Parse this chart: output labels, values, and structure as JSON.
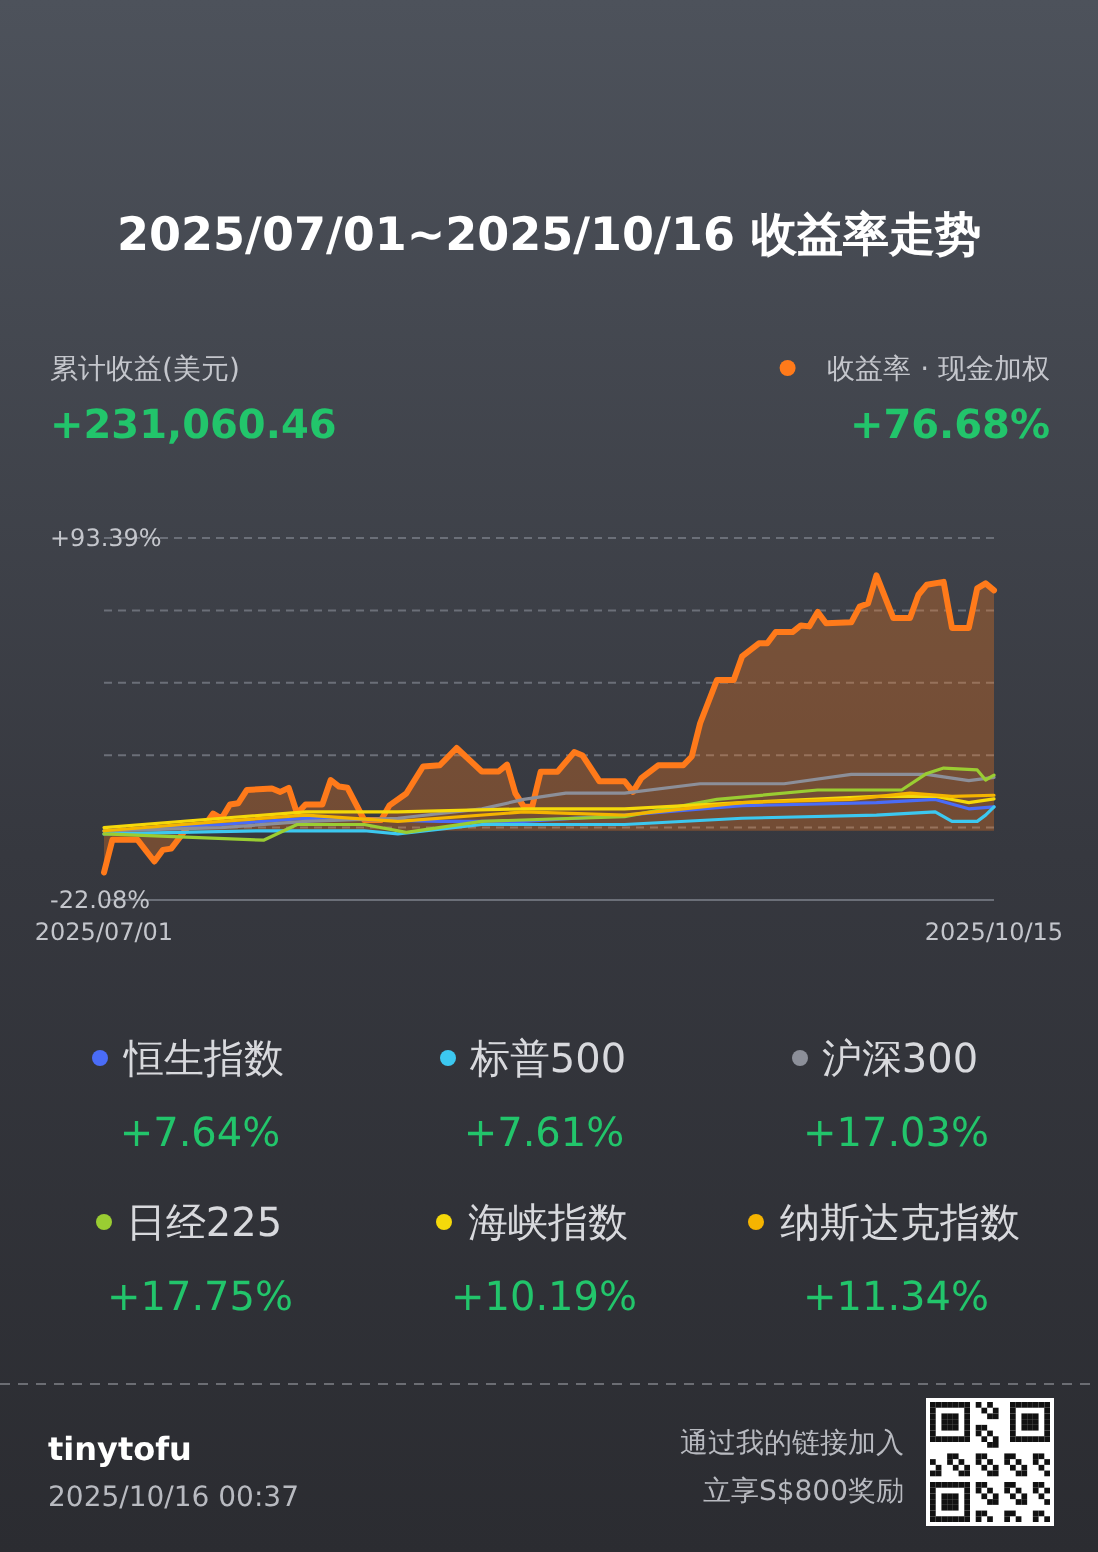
{
  "chart_data": {
    "type": "line",
    "title": "2025/07/01~2025/10/16 收益率走势",
    "annotations": [
      "累计收益(美元)",
      "+231,060.46",
      "tinytofu",
      "2025/10/16 00:37",
      "通过我的链接加入",
      "立享S$800奖励",
      "+76.68%",
      "+7.64%",
      "+7.61%",
      "+17.03%",
      "+17.75%",
      "+10.19%",
      "+11.34%"
    ],
    "xlim": [
      "2025-07-01",
      "2025-10-15"
    ],
    "xticks": [
      {
        "value": "2025-07-01",
        "label": "2025/07/01"
      },
      {
        "value": "2025-10-15",
        "label": "2025/10/15"
      }
    ],
    "ylim": [
      -22.08,
      93.39
    ],
    "yticks": [
      {
        "value": 93.39,
        "label": "+93.39%"
      },
      {
        "value": 70.29,
        "label": null
      },
      {
        "value": 47.2,
        "label": null
      },
      {
        "value": 24.11,
        "label": null
      },
      {
        "value": 1.01,
        "label": null
      },
      {
        "value": -22.08,
        "label": "-22.08%"
      }
    ],
    "grid": "y",
    "legend": "bottom",
    "marker": "none",
    "line_style": "solid",
    "series": [
      {
        "name": "收益率 · 现金加权",
        "type": "area",
        "color": "#ff7a1a",
        "x": [
          "2025-07-01",
          "2025-07-02",
          "2025-07-05",
          "2025-07-07",
          "2025-07-08",
          "2025-07-09",
          "2025-07-11",
          "2025-07-13",
          "2025-07-14",
          "2025-07-15",
          "2025-07-16",
          "2025-07-17",
          "2025-07-18",
          "2025-07-21",
          "2025-07-22",
          "2025-07-23",
          "2025-07-24",
          "2025-07-25",
          "2025-07-27",
          "2025-07-28",
          "2025-07-29",
          "2025-07-30",
          "2025-08-01",
          "2025-08-03",
          "2025-08-04",
          "2025-08-06",
          "2025-08-08",
          "2025-08-10",
          "2025-08-12",
          "2025-08-15",
          "2025-08-17",
          "2025-08-18",
          "2025-08-19",
          "2025-08-20",
          "2025-08-21",
          "2025-08-22",
          "2025-08-24",
          "2025-08-26",
          "2025-08-27",
          "2025-08-29",
          "2025-09-01",
          "2025-09-02",
          "2025-09-03",
          "2025-09-05",
          "2025-09-08",
          "2025-09-09",
          "2025-09-10",
          "2025-09-12",
          "2025-09-14",
          "2025-09-15",
          "2025-09-17",
          "2025-09-18",
          "2025-09-19",
          "2025-09-21",
          "2025-09-22",
          "2025-09-23",
          "2025-09-24",
          "2025-09-25",
          "2025-09-28",
          "2025-09-29",
          "2025-09-30",
          "2025-10-01",
          "2025-10-03",
          "2025-10-05",
          "2025-10-06",
          "2025-10-07",
          "2025-10-09",
          "2025-10-10",
          "2025-10-12",
          "2025-10-13",
          "2025-10-14",
          "2025-10-15"
        ],
        "values": [
          -13.3,
          -2.9,
          -2.9,
          -9.8,
          -6.1,
          -5.7,
          1.3,
          1.7,
          5.5,
          3.9,
          8.4,
          8.8,
          13,
          13.5,
          12.4,
          13.7,
          5.5,
          8.4,
          8.4,
          16.2,
          14.1,
          13.7,
          3.4,
          3.4,
          8.1,
          11.9,
          20.5,
          20.9,
          26.4,
          18.9,
          18.9,
          21.1,
          11.9,
          7.7,
          7.7,
          18.8,
          18.8,
          25.1,
          24,
          15.8,
          15.8,
          12.4,
          16.8,
          20.9,
          20.9,
          23.7,
          34.3,
          48.1,
          48.1,
          55.6,
          59.8,
          59.8,
          63.4,
          63.4,
          65.5,
          65.2,
          69.8,
          66.2,
          66.5,
          71.5,
          72.5,
          81.5,
          67.9,
          67.9,
          75.3,
          78.5,
          79.4,
          64.7,
          64.7,
          77.3,
          78.9,
          76.68
        ]
      },
      {
        "name": "恒生指数",
        "color": "#4a6cf7",
        "x": [
          "2025-07-01",
          "2025-07-15",
          "2025-07-25",
          "2025-08-10",
          "2025-08-20",
          "2025-09-01",
          "2025-09-15",
          "2025-10-01",
          "2025-10-08",
          "2025-10-12",
          "2025-10-15"
        ],
        "values": [
          0,
          2,
          4,
          3,
          3,
          5,
          8,
          9,
          10,
          7,
          7.64
        ]
      },
      {
        "name": "标普500",
        "color": "#3cc8f0",
        "x": [
          "2025-07-01",
          "2025-07-20",
          "2025-08-01",
          "2025-08-05",
          "2025-08-15",
          "2025-09-01",
          "2025-09-15",
          "2025-10-01",
          "2025-10-08",
          "2025-10-10",
          "2025-10-13",
          "2025-10-14",
          "2025-10-15"
        ],
        "values": [
          -1,
          0,
          0,
          -1,
          2,
          2,
          4,
          5,
          6,
          3,
          3,
          5,
          7.61
        ]
      },
      {
        "name": "沪深300",
        "color": "#8c8f99",
        "x": [
          "2025-07-01",
          "2025-07-15",
          "2025-07-25",
          "2025-08-05",
          "2025-08-15",
          "2025-08-20",
          "2025-08-25",
          "2025-09-01",
          "2025-09-10",
          "2025-09-20",
          "2025-09-28",
          "2025-10-07",
          "2025-10-12",
          "2025-10-15"
        ],
        "values": [
          0,
          1,
          3,
          4,
          7,
          10,
          12,
          12,
          15,
          15,
          18,
          18,
          16,
          17.03
        ]
      },
      {
        "name": "日经225",
        "color": "#9acd32",
        "x": [
          "2025-07-01",
          "2025-07-20",
          "2025-07-24",
          "2025-08-01",
          "2025-08-06",
          "2025-08-15",
          "2025-09-01",
          "2025-09-12",
          "2025-09-24",
          "2025-10-04",
          "2025-10-07",
          "2025-10-09",
          "2025-10-13",
          "2025-10-14",
          "2025-10-15"
        ],
        "values": [
          -1,
          -3,
          2,
          2,
          -0.5,
          3,
          4.5,
          10,
          13,
          13,
          18.3,
          20,
          19.4,
          16.2,
          17.75
        ]
      },
      {
        "name": "海峡指数",
        "color": "#f5d90a",
        "x": [
          "2025-07-01",
          "2025-07-15",
          "2025-07-25",
          "2025-08-05",
          "2025-08-20",
          "2025-09-01",
          "2025-09-15",
          "2025-10-01",
          "2025-10-08",
          "2025-10-12",
          "2025-10-15"
        ],
        "values": [
          1,
          4,
          6,
          6,
          7,
          7,
          9,
          11,
          11,
          9,
          10.19
        ]
      },
      {
        "name": "纳斯达克指数",
        "color": "#f5b400",
        "x": [
          "2025-07-01",
          "2025-07-15",
          "2025-07-25",
          "2025-08-05",
          "2025-08-20",
          "2025-09-01",
          "2025-09-15",
          "2025-09-28",
          "2025-10-05",
          "2025-10-10",
          "2025-10-15"
        ],
        "values": [
          0,
          3,
          5,
          3,
          6,
          5,
          9,
          10,
          12,
          11,
          11.34
        ]
      }
    ]
  }
}
